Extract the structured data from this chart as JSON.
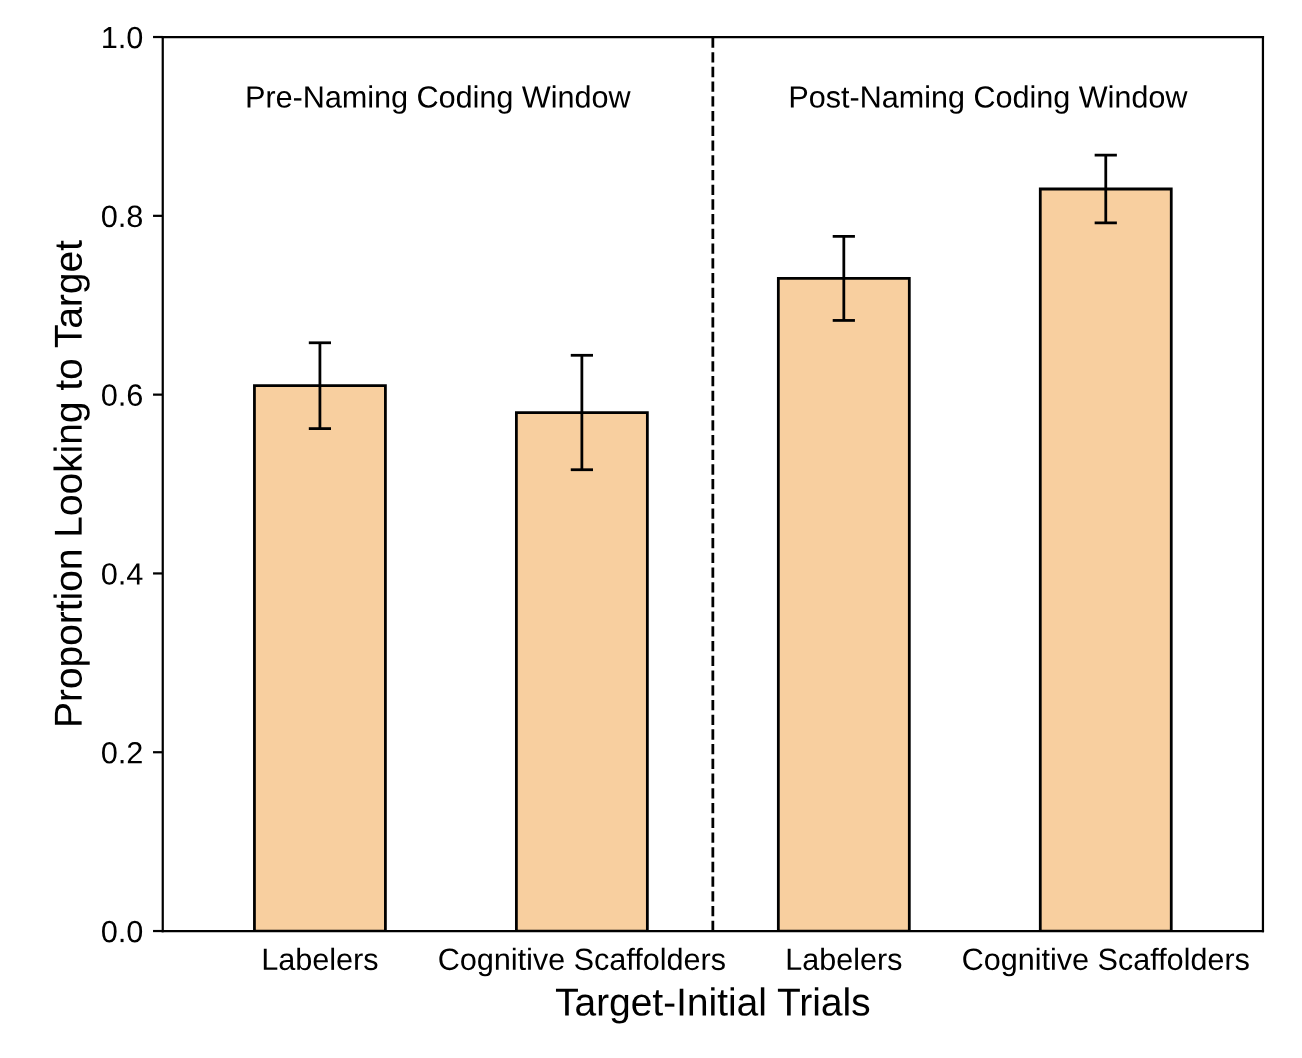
{
  "chart_data": {
    "type": "bar",
    "xlabel": "Target-Initial Trials",
    "ylabel": "Proportion Looking to Target",
    "categories": [
      "Labelers",
      "Cognitive Scaffolders",
      "Labelers",
      "Cognitive Scaffolders"
    ],
    "values": [
      0.61,
      0.58,
      0.73,
      0.83
    ],
    "errors": [
      [
        0.562,
        0.658
      ],
      [
        0.516,
        0.644
      ],
      [
        0.683,
        0.777
      ],
      [
        0.792,
        0.868
      ]
    ],
    "color": "#f8cf9f",
    "ylim": [
      0,
      1.0
    ],
    "yticks": [
      {
        "value": 0,
        "label": "0.0"
      },
      0.2,
      0.4,
      0.6,
      0.8,
      {
        "value": 1,
        "label": "1.0"
      }
    ],
    "grid": false,
    "legend": false,
    "annotations": [
      "Pre-Naming Coding Window",
      "Post-Naming Coding Window"
    ]
  }
}
